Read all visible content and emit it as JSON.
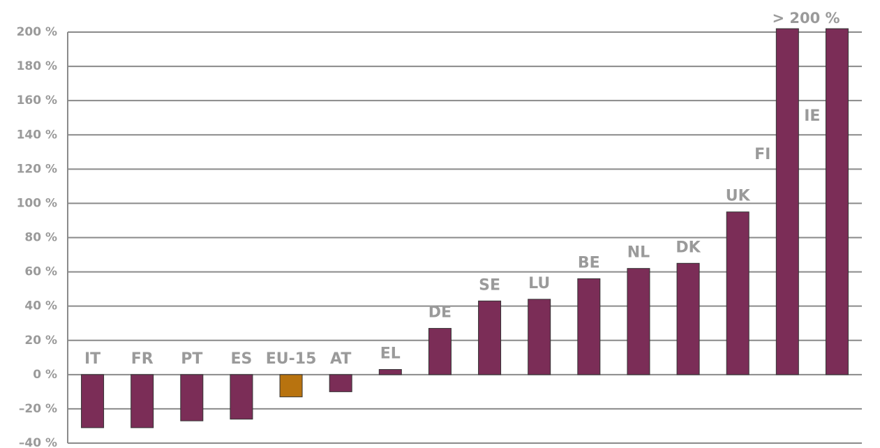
{
  "chart_data": {
    "type": "bar",
    "annotation": "> 200 %",
    "categories": [
      "IT",
      "FR",
      "PT",
      "ES",
      "EU-15",
      "AT",
      "EL",
      "DE",
      "SE",
      "LU",
      "BE",
      "NL",
      "DK",
      "UK",
      "FI",
      "IE"
    ],
    "values": [
      -31,
      -31,
      -27,
      -26,
      -13,
      -10,
      3,
      27,
      43,
      44,
      56,
      62,
      65,
      95,
      202,
      202
    ],
    "colors": [
      "#7b2d57",
      "#7b2d57",
      "#7b2d57",
      "#7b2d57",
      "#b8730f",
      "#7b2d57",
      "#7b2d57",
      "#7b2d57",
      "#7b2d57",
      "#7b2d57",
      "#7b2d57",
      "#7b2d57",
      "#7b2d57",
      "#7b2d57",
      "#7b2d57",
      "#7b2d57"
    ],
    "ylim": [
      -40,
      200
    ],
    "yticks": [
      {
        "value": -40,
        "label": "–40 %"
      },
      {
        "value": -20,
        "label": "–20 %"
      },
      {
        "value": 0,
        "label": "0 %"
      },
      {
        "value": 20,
        "label": "20 %"
      },
      {
        "value": 40,
        "label": "40 %"
      },
      {
        "value": 60,
        "label": "60 %"
      },
      {
        "value": 80,
        "label": "80 %"
      },
      {
        "value": 100,
        "label": "100 %"
      },
      {
        "value": 120,
        "label": "120 %"
      },
      {
        "value": 140,
        "label": "140 %"
      },
      {
        "value": 160,
        "label": "160 %"
      },
      {
        "value": 180,
        "label": "180 %"
      },
      {
        "value": 200,
        "label": "200 %"
      }
    ],
    "grid": true
  }
}
